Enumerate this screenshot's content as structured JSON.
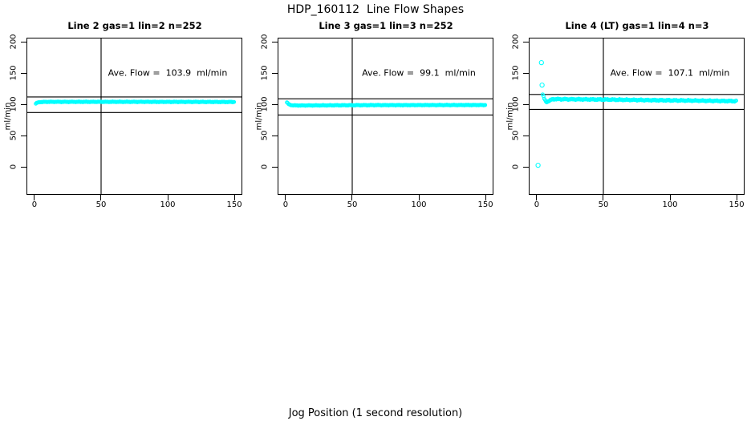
{
  "figure": {
    "title": "HDP_160112  Line Flow Shapes",
    "outer_xlabel": "Jog Position (1 second resolution)",
    "point_color": "#00ffff",
    "axis_color": "#000000"
  },
  "chart_data": [
    {
      "type": "scatter",
      "title": "Line 2 gas=1 lin=2 n=252",
      "ylabel": "ml/min",
      "annotation": "Ave. Flow =  103.9  ml/min",
      "ave_flow_ml_min": 103.9,
      "x_ticks": [
        0,
        50,
        100,
        150
      ],
      "y_ticks": [
        0,
        50,
        100,
        150,
        200
      ],
      "x_range": [
        -6,
        156
      ],
      "y_range": [
        -45,
        207
      ],
      "grid": false,
      "vline_x": 50,
      "hlines_y": [
        112,
        87
      ],
      "profile": [
        [
          1,
          101.2
        ],
        [
          2,
          102.6
        ],
        [
          4,
          103.7
        ],
        [
          8,
          104.1
        ],
        [
          80,
          104.1
        ],
        [
          150,
          103.9
        ]
      ],
      "noise": 0.55,
      "outliers": []
    },
    {
      "type": "scatter",
      "title": "Line 3 gas=1 lin=3 n=252",
      "ylabel": "ml/min",
      "annotation": "Ave. Flow =  99.1  ml/min",
      "ave_flow_ml_min": 99.1,
      "x_ticks": [
        0,
        50,
        100,
        150
      ],
      "y_ticks": [
        0,
        50,
        100,
        150,
        200
      ],
      "x_range": [
        -6,
        156
      ],
      "y_range": [
        -45,
        207
      ],
      "grid": false,
      "vline_x": 50,
      "hlines_y": [
        109,
        83
      ],
      "profile": [
        [
          1,
          103.2
        ],
        [
          2,
          100.8
        ],
        [
          3,
          99.4
        ],
        [
          5,
          98.6
        ],
        [
          10,
          98.3
        ],
        [
          60,
          98.8
        ],
        [
          150,
          99.0
        ]
      ],
      "noise": 0.55,
      "outliers": []
    },
    {
      "type": "scatter",
      "title": "Line 4 (LT) gas=1 lin=4 n=3",
      "ylabel": "ml/min",
      "annotation": "Ave. Flow =  107.1  ml/min",
      "ave_flow_ml_min": 107.1,
      "x_ticks": [
        0,
        50,
        100,
        150
      ],
      "y_ticks": [
        0,
        50,
        100,
        150,
        200
      ],
      "x_range": [
        -6,
        156
      ],
      "y_range": [
        -45,
        207
      ],
      "grid": false,
      "vline_x": 50,
      "hlines_y": [
        116,
        92
      ],
      "profile": [
        [
          4.5,
          116
        ],
        [
          5.5,
          110
        ],
        [
          7,
          103.5
        ],
        [
          9,
          105.5
        ],
        [
          12,
          108.5
        ],
        [
          40,
          108
        ],
        [
          100,
          106.5
        ],
        [
          150,
          105.2
        ]
      ],
      "noise": 1.1,
      "outliers": [
        [
          1,
          2.5
        ],
        [
          3.5,
          167
        ],
        [
          4,
          131
        ]
      ]
    }
  ]
}
